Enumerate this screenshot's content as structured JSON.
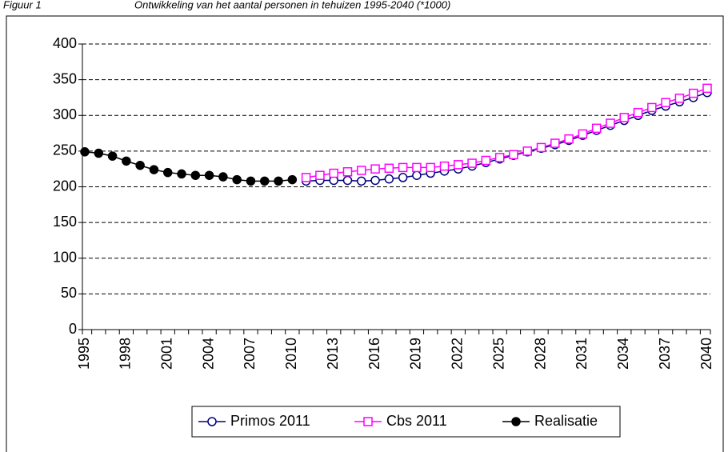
{
  "chart_data": {
    "type": "line",
    "figure_label": "Figuur 1",
    "title": "Ontwikkeling van het aantal personen in tehuizen 1995-2040 (*1000)",
    "categories": [
      "1995",
      null,
      null,
      "1998",
      null,
      null,
      "2001",
      null,
      null,
      "2004",
      null,
      null,
      "2007",
      null,
      null,
      "2010",
      null,
      null,
      "2013",
      null,
      null,
      "2016",
      null,
      null,
      "2019",
      null,
      null,
      "2022",
      null,
      null,
      "2025",
      null,
      null,
      "2028",
      null,
      null,
      "2031",
      null,
      null,
      "2034",
      null,
      null,
      "2037",
      null,
      null,
      "2040"
    ],
    "series": [
      {
        "name": "Primos 2011",
        "color": "#000080",
        "marker": "circle-open",
        "values": [
          null,
          null,
          null,
          null,
          null,
          null,
          null,
          null,
          null,
          null,
          null,
          null,
          null,
          null,
          null,
          null,
          208,
          209,
          209,
          209,
          208,
          209,
          211,
          213,
          216,
          219,
          222,
          225,
          229,
          234,
          239,
          244,
          249,
          254,
          259,
          265,
          272,
          279,
          286,
          293,
          300,
          307,
          313,
          319,
          325,
          332
        ]
      },
      {
        "name": "Cbs 2011",
        "color": "#ff00ff",
        "marker": "square-open",
        "values": [
          null,
          null,
          null,
          null,
          null,
          null,
          null,
          null,
          null,
          null,
          null,
          null,
          null,
          null,
          null,
          null,
          213,
          216,
          219,
          221,
          223,
          225,
          226,
          227,
          227,
          227,
          229,
          231,
          233,
          237,
          241,
          245,
          250,
          255,
          261,
          267,
          274,
          282,
          289,
          297,
          304,
          311,
          318,
          324,
          331,
          338
        ]
      },
      {
        "name": "Realisatie",
        "color": "#000000",
        "marker": "circle-filled",
        "values": [
          249,
          247,
          243,
          236,
          230,
          224,
          220,
          218,
          216,
          216,
          214,
          210,
          208,
          208,
          208,
          210,
          null,
          null,
          null,
          null,
          null,
          null,
          null,
          null,
          null,
          null,
          null,
          null,
          null,
          null,
          null,
          null,
          null,
          null,
          null,
          null,
          null,
          null,
          null,
          null,
          null,
          null,
          null,
          null,
          null,
          null
        ]
      }
    ],
    "ylim": [
      0,
      400
    ],
    "yticks": [
      0,
      50,
      100,
      150,
      200,
      250,
      300,
      350,
      400
    ],
    "grid": true,
    "legend": "bottom"
  }
}
